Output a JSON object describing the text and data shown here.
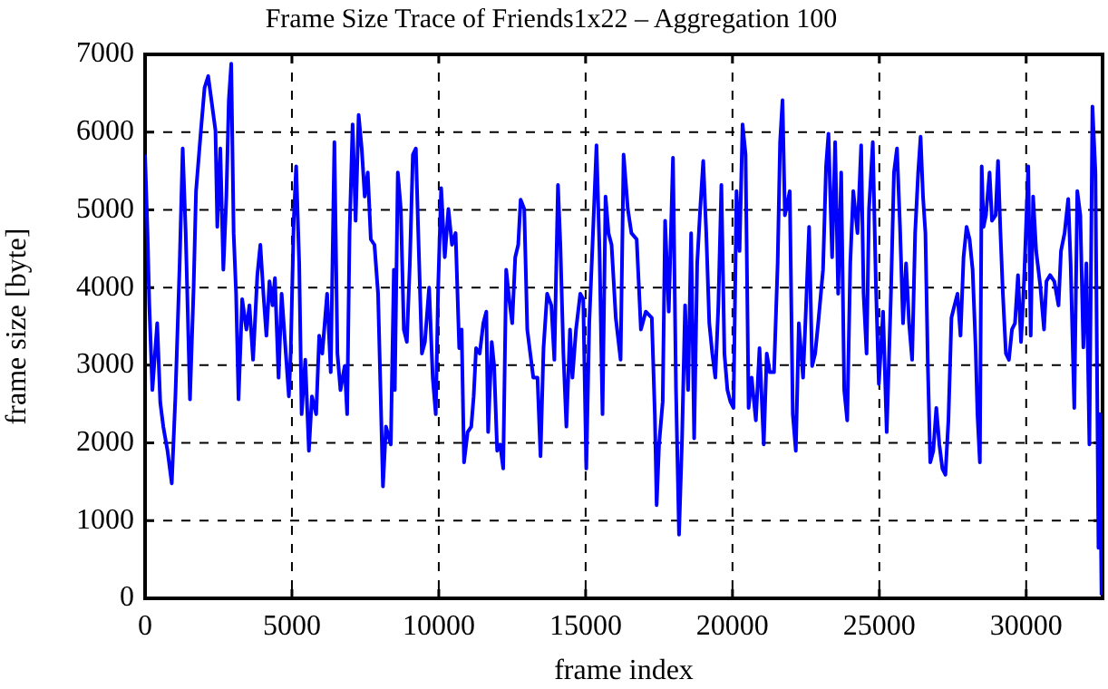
{
  "chart_data": {
    "type": "line",
    "title": "Frame Size Trace of Friends1x22 – Aggregation 100",
    "xlabel": "frame index",
    "ylabel": "frame size [byte]",
    "xlim": [
      0,
      32600
    ],
    "xticks": [
      0,
      5000,
      10000,
      15000,
      20000,
      25000,
      30000
    ],
    "ylim": [
      0,
      7000
    ],
    "yticks": [
      0,
      1000,
      2000,
      3000,
      4000,
      5000,
      6000,
      7000
    ],
    "grid": true,
    "marker": "none",
    "line_style": "solid",
    "series": [
      {
        "color": "#0000ff",
        "x": [
          0,
          83,
          145,
          248,
          413,
          517,
          620,
          764,
          909,
          1033,
          1178,
          1281,
          1384,
          1529,
          1653,
          1735,
          1901,
          2025,
          2149,
          2273,
          2397,
          2459,
          2562,
          2665,
          2768,
          2851,
          2934,
          3016,
          3099,
          3182,
          3306,
          3450,
          3554,
          3677,
          3822,
          3925,
          4029,
          4132,
          4235,
          4339,
          4421,
          4545,
          4649,
          4793,
          4896,
          4958,
          5062,
          5144,
          5248,
          5330,
          5454,
          5578,
          5682,
          5826,
          5929,
          6033,
          6198,
          6322,
          6446,
          6549,
          6653,
          6797,
          6880,
          6962,
          7066,
          7169,
          7272,
          7376,
          7479,
          7582,
          7686,
          7810,
          7933,
          8099,
          8202,
          8367,
          8471,
          8503,
          8605,
          8708,
          8810,
          8913,
          9015,
          9118,
          9220,
          9302,
          9425,
          9528,
          9671,
          9794,
          9897,
          9979,
          10081,
          10204,
          10327,
          10450,
          10573,
          10696,
          10778,
          10860,
          10983,
          11106,
          11188,
          11270,
          11393,
          11516,
          11619,
          11680,
          11803,
          11885,
          11988,
          12090,
          12193,
          12295,
          12398,
          12500,
          12603,
          12705,
          12787,
          12910,
          13013,
          13115,
          13218,
          13361,
          13464,
          13566,
          13689,
          13833,
          13935,
          14058,
          14140,
          14243,
          14345,
          14468,
          14550,
          14673,
          14817,
          14919,
          15022,
          15124,
          15268,
          15370,
          15473,
          15575,
          15678,
          15780,
          15883,
          16026,
          16190,
          16293,
          16436,
          16559,
          16738,
          16882,
          17047,
          17253,
          17356,
          17418,
          17500,
          17624,
          17706,
          17830,
          17974,
          18077,
          18180,
          18283,
          18386,
          18489,
          18592,
          18695,
          18798,
          18901,
          19004,
          19107,
          19210,
          19313,
          19416,
          19519,
          19622,
          19725,
          19828,
          19931,
          20034,
          20137,
          20240,
          20343,
          20446,
          20549,
          20652,
          20796,
          20920,
          21064,
          21167,
          21270,
          21414,
          21538,
          21620,
          21703,
          21785,
          21950,
          22053,
          22156,
          22259,
          22403,
          22506,
          22609,
          22712,
          22815,
          22918,
          23083,
          23186,
          23268,
          23392,
          23495,
          23598,
          23701,
          23804,
          23907,
          24010,
          24113,
          24257,
          24381,
          24463,
          24566,
          24648,
          24777,
          24880,
          24983,
          25127,
          25251,
          25395,
          25498,
          25601,
          25704,
          25807,
          25910,
          26013,
          26116,
          26219,
          26322,
          26404,
          26487,
          26569,
          26652,
          26734,
          26837,
          26940,
          27043,
          27146,
          27249,
          27352,
          27455,
          27558,
          27661,
          27764,
          27867,
          27970,
          28073,
          28176,
          28279,
          28341,
          28423,
          28485,
          28547,
          28629,
          28753,
          28835,
          28959,
          29041,
          29124,
          29206,
          29309,
          29412,
          29515,
          29618,
          29721,
          29824,
          29927,
          30071,
          30154,
          30236,
          30339,
          30483,
          30607,
          30689,
          30813,
          30957,
          31101,
          31184,
          31307,
          31431,
          31513,
          31637,
          31740,
          31843,
          31946,
          32049,
          32152,
          32255,
          32358,
          32461,
          32502,
          32564
        ],
        "values": [
          5710,
          4700,
          3770,
          2680,
          3540,
          2520,
          2210,
          1900,
          1480,
          2600,
          4310,
          5790,
          4700,
          2560,
          4000,
          5240,
          6020,
          6570,
          6720,
          6370,
          6020,
          4780,
          5790,
          4230,
          5170,
          6410,
          6880,
          4700,
          3920,
          2560,
          3850,
          3460,
          3770,
          3070,
          4160,
          4550,
          3920,
          3380,
          4080,
          3770,
          4120,
          2840,
          3920,
          3150,
          2600,
          3150,
          4860,
          5560,
          4310,
          2370,
          3070,
          1900,
          2600,
          2370,
          3380,
          3150,
          3920,
          2910,
          5870,
          3150,
          2680,
          2990,
          2370,
          4700,
          6100,
          4860,
          6220,
          5790,
          5170,
          5480,
          4620,
          4550,
          3920,
          1440,
          2210,
          1980,
          4230,
          2680,
          5480,
          5010,
          3460,
          3300,
          4310,
          5710,
          5790,
          4700,
          3150,
          3300,
          4000,
          2840,
          2370,
          4000,
          5280,
          4390,
          5010,
          4550,
          4700,
          3220,
          3460,
          1750,
          2140,
          2210,
          2600,
          3220,
          3150,
          3540,
          3690,
          2140,
          3300,
          2990,
          1900,
          1980,
          1670,
          4230,
          3850,
          3540,
          4390,
          4550,
          5130,
          5010,
          3460,
          3150,
          2840,
          2840,
          1830,
          3220,
          3920,
          3770,
          3070,
          5320,
          4550,
          3150,
          2210,
          3460,
          2840,
          3460,
          3920,
          3850,
          1670,
          3540,
          4860,
          5830,
          4470,
          2370,
          5170,
          4700,
          4550,
          3610,
          3070,
          5710,
          5010,
          4700,
          4620,
          3460,
          3690,
          3610,
          2370,
          1200,
          1980,
          2530,
          4860,
          3690,
          5670,
          2680,
          820,
          2060,
          3770,
          2680,
          4700,
          2060,
          4310,
          5010,
          5630,
          4700,
          3540,
          3150,
          2840,
          3770,
          5320,
          3150,
          2680,
          2530,
          2450,
          5240,
          4470,
          6100,
          5710,
          2450,
          2840,
          2290,
          3220,
          1980,
          3150,
          2910,
          2910,
          4310,
          5870,
          6410,
          4930,
          5240,
          2370,
          1900,
          3540,
          2840,
          3770,
          4780,
          2990,
          3150,
          3540,
          4230,
          5560,
          5980,
          4390,
          5870,
          3920,
          5480,
          2680,
          2290,
          4310,
          5240,
          4700,
          5830,
          3920,
          3150,
          5010,
          5870,
          4080,
          2760,
          3690,
          2140,
          3920,
          5480,
          5790,
          4780,
          3540,
          4310,
          3540,
          3070,
          4700,
          5480,
          5940,
          5170,
          4700,
          2990,
          1750,
          1900,
          2450,
          1980,
          1670,
          1590,
          2290,
          3610,
          3770,
          3920,
          3380,
          4390,
          4780,
          4620,
          4230,
          3220,
          2370,
          1750,
          5560,
          4780,
          4930,
          5480,
          4860,
          4930,
          5630,
          4700,
          3920,
          3150,
          3070,
          3460,
          3540,
          4160,
          3300,
          4080,
          5560,
          3380,
          5170,
          4470,
          4010,
          3460,
          4080,
          4160,
          4080,
          3770,
          4470,
          4700,
          5140,
          4310,
          2450,
          5240,
          4930,
          3230,
          4310,
          1980,
          6330,
          5480,
          650,
          2370,
          40
        ]
      }
    ]
  }
}
